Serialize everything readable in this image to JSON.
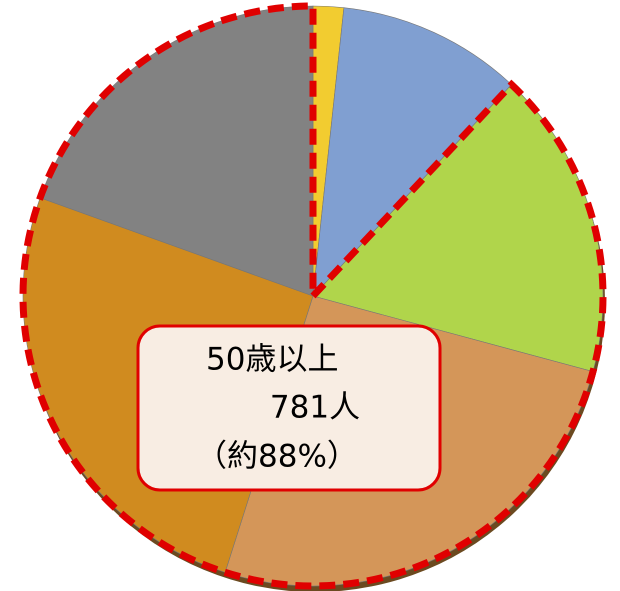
{
  "chart_data": {
    "type": "pie",
    "categories": [
      null,
      null,
      null,
      null,
      null,
      null
    ],
    "values": [
      1.7,
      10.3,
      17.2,
      25.7,
      25.6,
      19.5
    ],
    "colors": [
      "#f2cc30",
      "#809fd1",
      "#b0d54b",
      "#d49659",
      "#d08b1f",
      "#828282"
    ],
    "annotation": [
      "50歳以上",
      "781人",
      "（約88%）"
    ],
    "highlight_color": "#e00000"
  }
}
